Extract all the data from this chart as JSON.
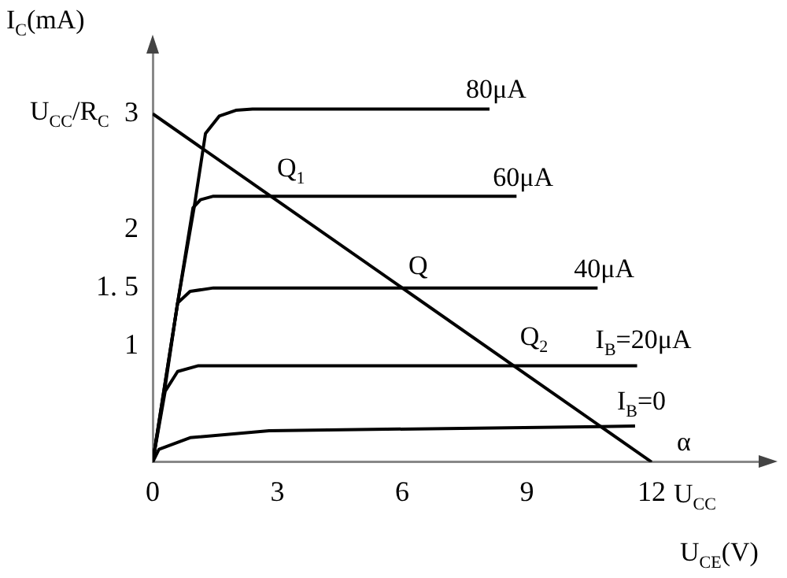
{
  "chart_data": {
    "type": "line",
    "xlabel": "U$_{CE}$(V)",
    "ylabel": "I$_{C}$(mA)",
    "xlim": [
      0,
      14.8
    ],
    "ylim": [
      0,
      3.6
    ],
    "xticks": [
      0,
      3,
      6,
      9,
      12
    ],
    "yticks": [
      1,
      {
        "value": 1.5,
        "label": "1. 5"
      },
      2,
      3
    ],
    "grid": false,
    "legend": false,
    "marker": "none",
    "line_style": "solid",
    "series": [
      {
        "name": "80μA",
        "color": "#000000",
        "x": [
          0,
          0.6,
          1.0,
          1.27,
          1.6,
          2.0,
          2.4,
          8.1
        ],
        "values": [
          0,
          1.37,
          2.2,
          2.83,
          2.98,
          3.03,
          3.04,
          3.04
        ]
      },
      {
        "name": "60μA",
        "color": "#000000",
        "x": [
          0,
          0.6,
          0.97,
          1.15,
          1.46,
          8.75
        ],
        "values": [
          0,
          1.37,
          2.19,
          2.26,
          2.29,
          2.29
        ]
      },
      {
        "name": "40μA",
        "color": "#000000",
        "x": [
          0,
          0.3,
          0.6,
          0.9,
          1.46,
          10.7
        ],
        "values": [
          0,
          0.65,
          1.37,
          1.47,
          1.5,
          1.5
        ]
      },
      {
        "name": "I$_{B}$=20μA",
        "color": "#000000",
        "x": [
          0,
          0.3,
          0.6,
          1.1,
          11.65
        ],
        "values": [
          0,
          0.61,
          0.78,
          0.83,
          0.83
        ]
      },
      {
        "name": "I$_{B}$=0",
        "color": "#000000",
        "x": [
          0,
          0.15,
          0.9,
          2.8,
          11.6
        ],
        "values": [
          0,
          0.11,
          0.21,
          0.27,
          0.31
        ]
      },
      {
        "color": "#000000",
        "x": [
          0,
          12
        ],
        "values": [
          3,
          0
        ]
      }
    ],
    "annotations": [
      {
        "text": "Q$_{1}$",
        "x": 2.84,
        "y": 2.29
      },
      {
        "text": "Q",
        "x": 6,
        "y": 1.5
      },
      {
        "text": "Q$_{2}$",
        "x": 8.68,
        "y": 0.83
      },
      {
        "text": "U$_{CC}$/R$_{C}$",
        "x": 0,
        "y": 3
      },
      {
        "text": "U$_{CC}$",
        "x": 12,
        "y": 0
      },
      "α"
    ]
  }
}
